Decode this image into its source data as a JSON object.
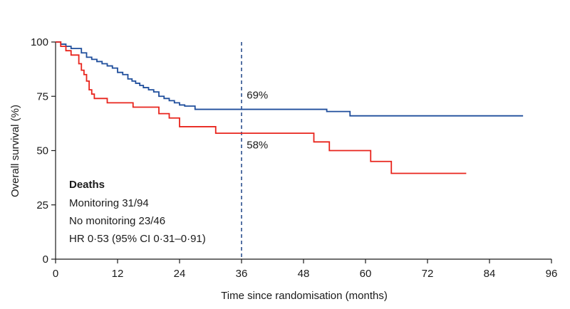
{
  "chart_data": {
    "type": "line",
    "step": true,
    "xlabel": "Time since randomisation (months)",
    "ylabel": "Overall survival (%)",
    "xlim": [
      0,
      96
    ],
    "ylim": [
      0,
      100
    ],
    "xticks": [
      0,
      12,
      24,
      36,
      48,
      60,
      72,
      84,
      96
    ],
    "yticks": [
      0,
      25,
      50,
      75,
      100
    ],
    "grid": false,
    "reference_line": {
      "x": 36,
      "style": "dashed",
      "color": "#2b4f8e"
    },
    "series": [
      {
        "color": "#1f4e9c",
        "points": [
          [
            0,
            100
          ],
          [
            1,
            99
          ],
          [
            2,
            98
          ],
          [
            3,
            97
          ],
          [
            5,
            95
          ],
          [
            6,
            93
          ],
          [
            7,
            92
          ],
          [
            8,
            91
          ],
          [
            9,
            90
          ],
          [
            10,
            89
          ],
          [
            11,
            88
          ],
          [
            12,
            86
          ],
          [
            13,
            85
          ],
          [
            14,
            83
          ],
          [
            14.8,
            82
          ],
          [
            15.5,
            81
          ],
          [
            16.3,
            80
          ],
          [
            17,
            79
          ],
          [
            18,
            78
          ],
          [
            19,
            77
          ],
          [
            20,
            75
          ],
          [
            21,
            74
          ],
          [
            22,
            73
          ],
          [
            23,
            72
          ],
          [
            24,
            71
          ],
          [
            25,
            70.5
          ],
          [
            27,
            69
          ],
          [
            52,
            69
          ],
          [
            52.5,
            68
          ],
          [
            57,
            66
          ],
          [
            90.5,
            66
          ]
        ]
      },
      {
        "color": "#e8241c",
        "points": [
          [
            0,
            100
          ],
          [
            1,
            98
          ],
          [
            2,
            96
          ],
          [
            3,
            94
          ],
          [
            4.5,
            90
          ],
          [
            5,
            87
          ],
          [
            5.5,
            85
          ],
          [
            6,
            82
          ],
          [
            6.5,
            78
          ],
          [
            7,
            76
          ],
          [
            7.5,
            74
          ],
          [
            10,
            72
          ],
          [
            15,
            70
          ],
          [
            20,
            67
          ],
          [
            22,
            65
          ],
          [
            24,
            61
          ],
          [
            31,
            58
          ],
          [
            50,
            54
          ],
          [
            53,
            50
          ],
          [
            61,
            45
          ],
          [
            65,
            39.5
          ],
          [
            79.5,
            39.5
          ]
        ]
      }
    ],
    "annotations": [
      {
        "text": "69%",
        "x": 37,
        "y": 74
      },
      {
        "text": "58%",
        "x": 37,
        "y": 51
      }
    ],
    "legend": {
      "position": "bottom-left",
      "heading": "Deaths",
      "lines": [
        "Monitoring 31/94",
        "No monitoring 23/46",
        "HR 0·53 (95% CI 0·31–0·91)"
      ]
    }
  }
}
